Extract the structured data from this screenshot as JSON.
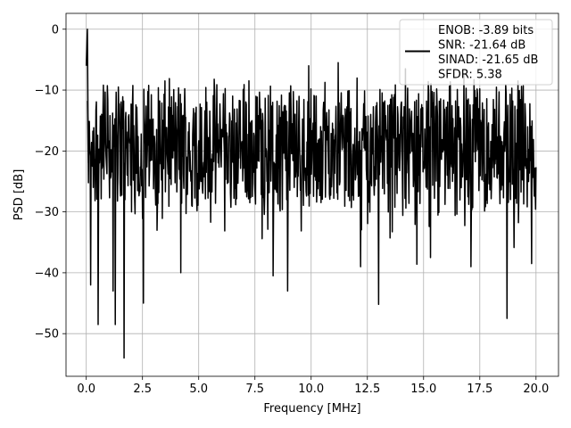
{
  "chart_data": {
    "type": "line",
    "title": "",
    "xlabel": "Frequency [MHz]",
    "ylabel": "PSD [dB]",
    "xlim": [
      -0.9,
      21
    ],
    "ylim": [
      -57,
      2.6
    ],
    "xticks": [
      0.0,
      2.5,
      5.0,
      7.5,
      10.0,
      12.5,
      15.0,
      17.5,
      20.0
    ],
    "xtick_labels": [
      "0.0",
      "2.5",
      "5.0",
      "7.5",
      "10.0",
      "12.5",
      "15.0",
      "17.5",
      "20.0"
    ],
    "yticks": [
      0,
      -10,
      -20,
      -30,
      -40,
      -50
    ],
    "ytick_labels": [
      "0",
      "−10",
      "−20",
      "−30",
      "−40",
      "−50"
    ],
    "grid": true,
    "legend_position": "top-right",
    "legend_lines": [
      "ENOB: -3.89 bits",
      "SNR: -21.64 dB",
      "SINAD: -21.65 dB",
      "SFDR: 5.38"
    ],
    "series": [
      {
        "color": "#000000",
        "x_range": [
          0,
          20
        ],
        "num_points": 1024,
        "noise_band": [
          -28,
          -9
        ],
        "noise_mean": -19,
        "peak": {
          "x": 0.05,
          "y": 0
        },
        "dips": [
          {
            "x": 0.2,
            "y": -42
          },
          {
            "x": 0.52,
            "y": -48.5
          },
          {
            "x": 1.2,
            "y": -43
          },
          {
            "x": 1.3,
            "y": -48.5
          },
          {
            "x": 1.68,
            "y": -54
          },
          {
            "x": 2.55,
            "y": -45
          },
          {
            "x": 4.2,
            "y": -40
          },
          {
            "x": 8.3,
            "y": -40.5
          },
          {
            "x": 8.95,
            "y": -43
          },
          {
            "x": 12.2,
            "y": -39
          },
          {
            "x": 13.0,
            "y": -45.2
          },
          {
            "x": 14.7,
            "y": -38.6
          },
          {
            "x": 15.3,
            "y": -37.5
          },
          {
            "x": 17.1,
            "y": -39
          },
          {
            "x": 18.7,
            "y": -47.5
          },
          {
            "x": 19.8,
            "y": -38.5
          }
        ],
        "spikes": [
          {
            "x": 9.9,
            "y": -6
          },
          {
            "x": 11.2,
            "y": -5.5
          },
          {
            "x": 14.2,
            "y": -6.5
          },
          {
            "x": 16.8,
            "y": -7.5
          },
          {
            "x": 19.2,
            "y": -8.5
          }
        ]
      }
    ]
  }
}
